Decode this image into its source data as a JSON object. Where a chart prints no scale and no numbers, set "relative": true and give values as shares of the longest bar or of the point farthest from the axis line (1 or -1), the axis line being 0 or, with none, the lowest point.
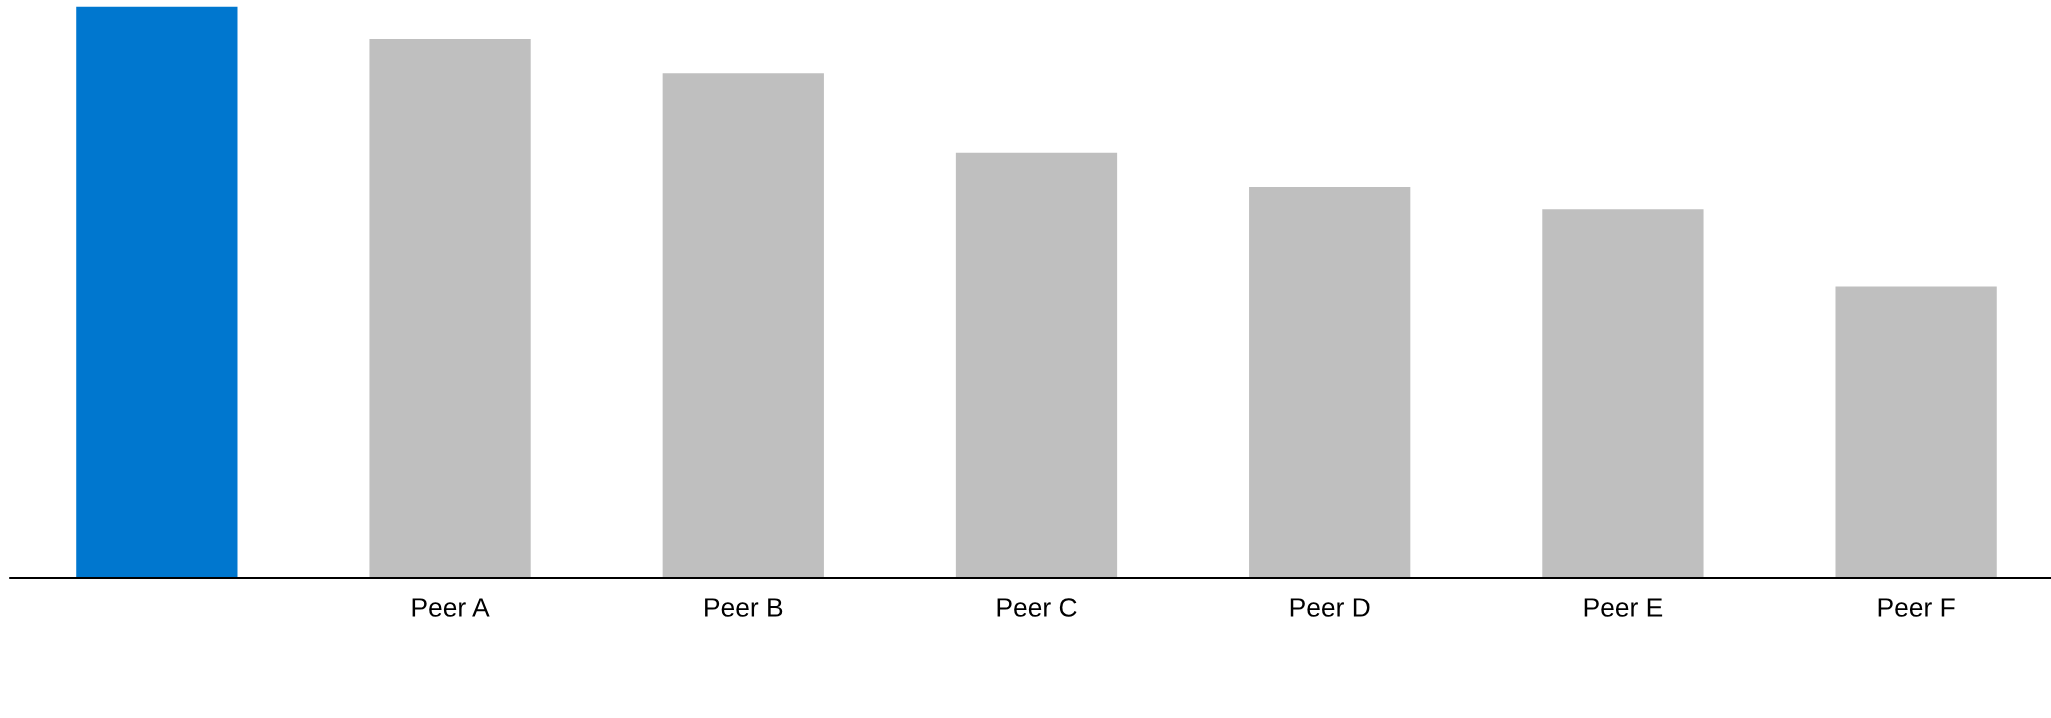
{
  "chart_data": {
    "type": "bar",
    "relative": true,
    "categories": [
      null,
      "Peer A",
      "Peer B",
      "Peer C",
      "Peer D",
      "Peer E",
      "Peer F"
    ],
    "values": [
      1,
      0.943,
      0.883,
      0.744,
      0.684,
      0.645,
      0.51
    ],
    "colors": [
      "#0077cf",
      "#bfbfbf",
      "#bfbfbf",
      "#bfbfbf",
      "#bfbfbf",
      "#bfbfbf",
      "#bfbfbf"
    ],
    "grid": false,
    "legend": false
  }
}
